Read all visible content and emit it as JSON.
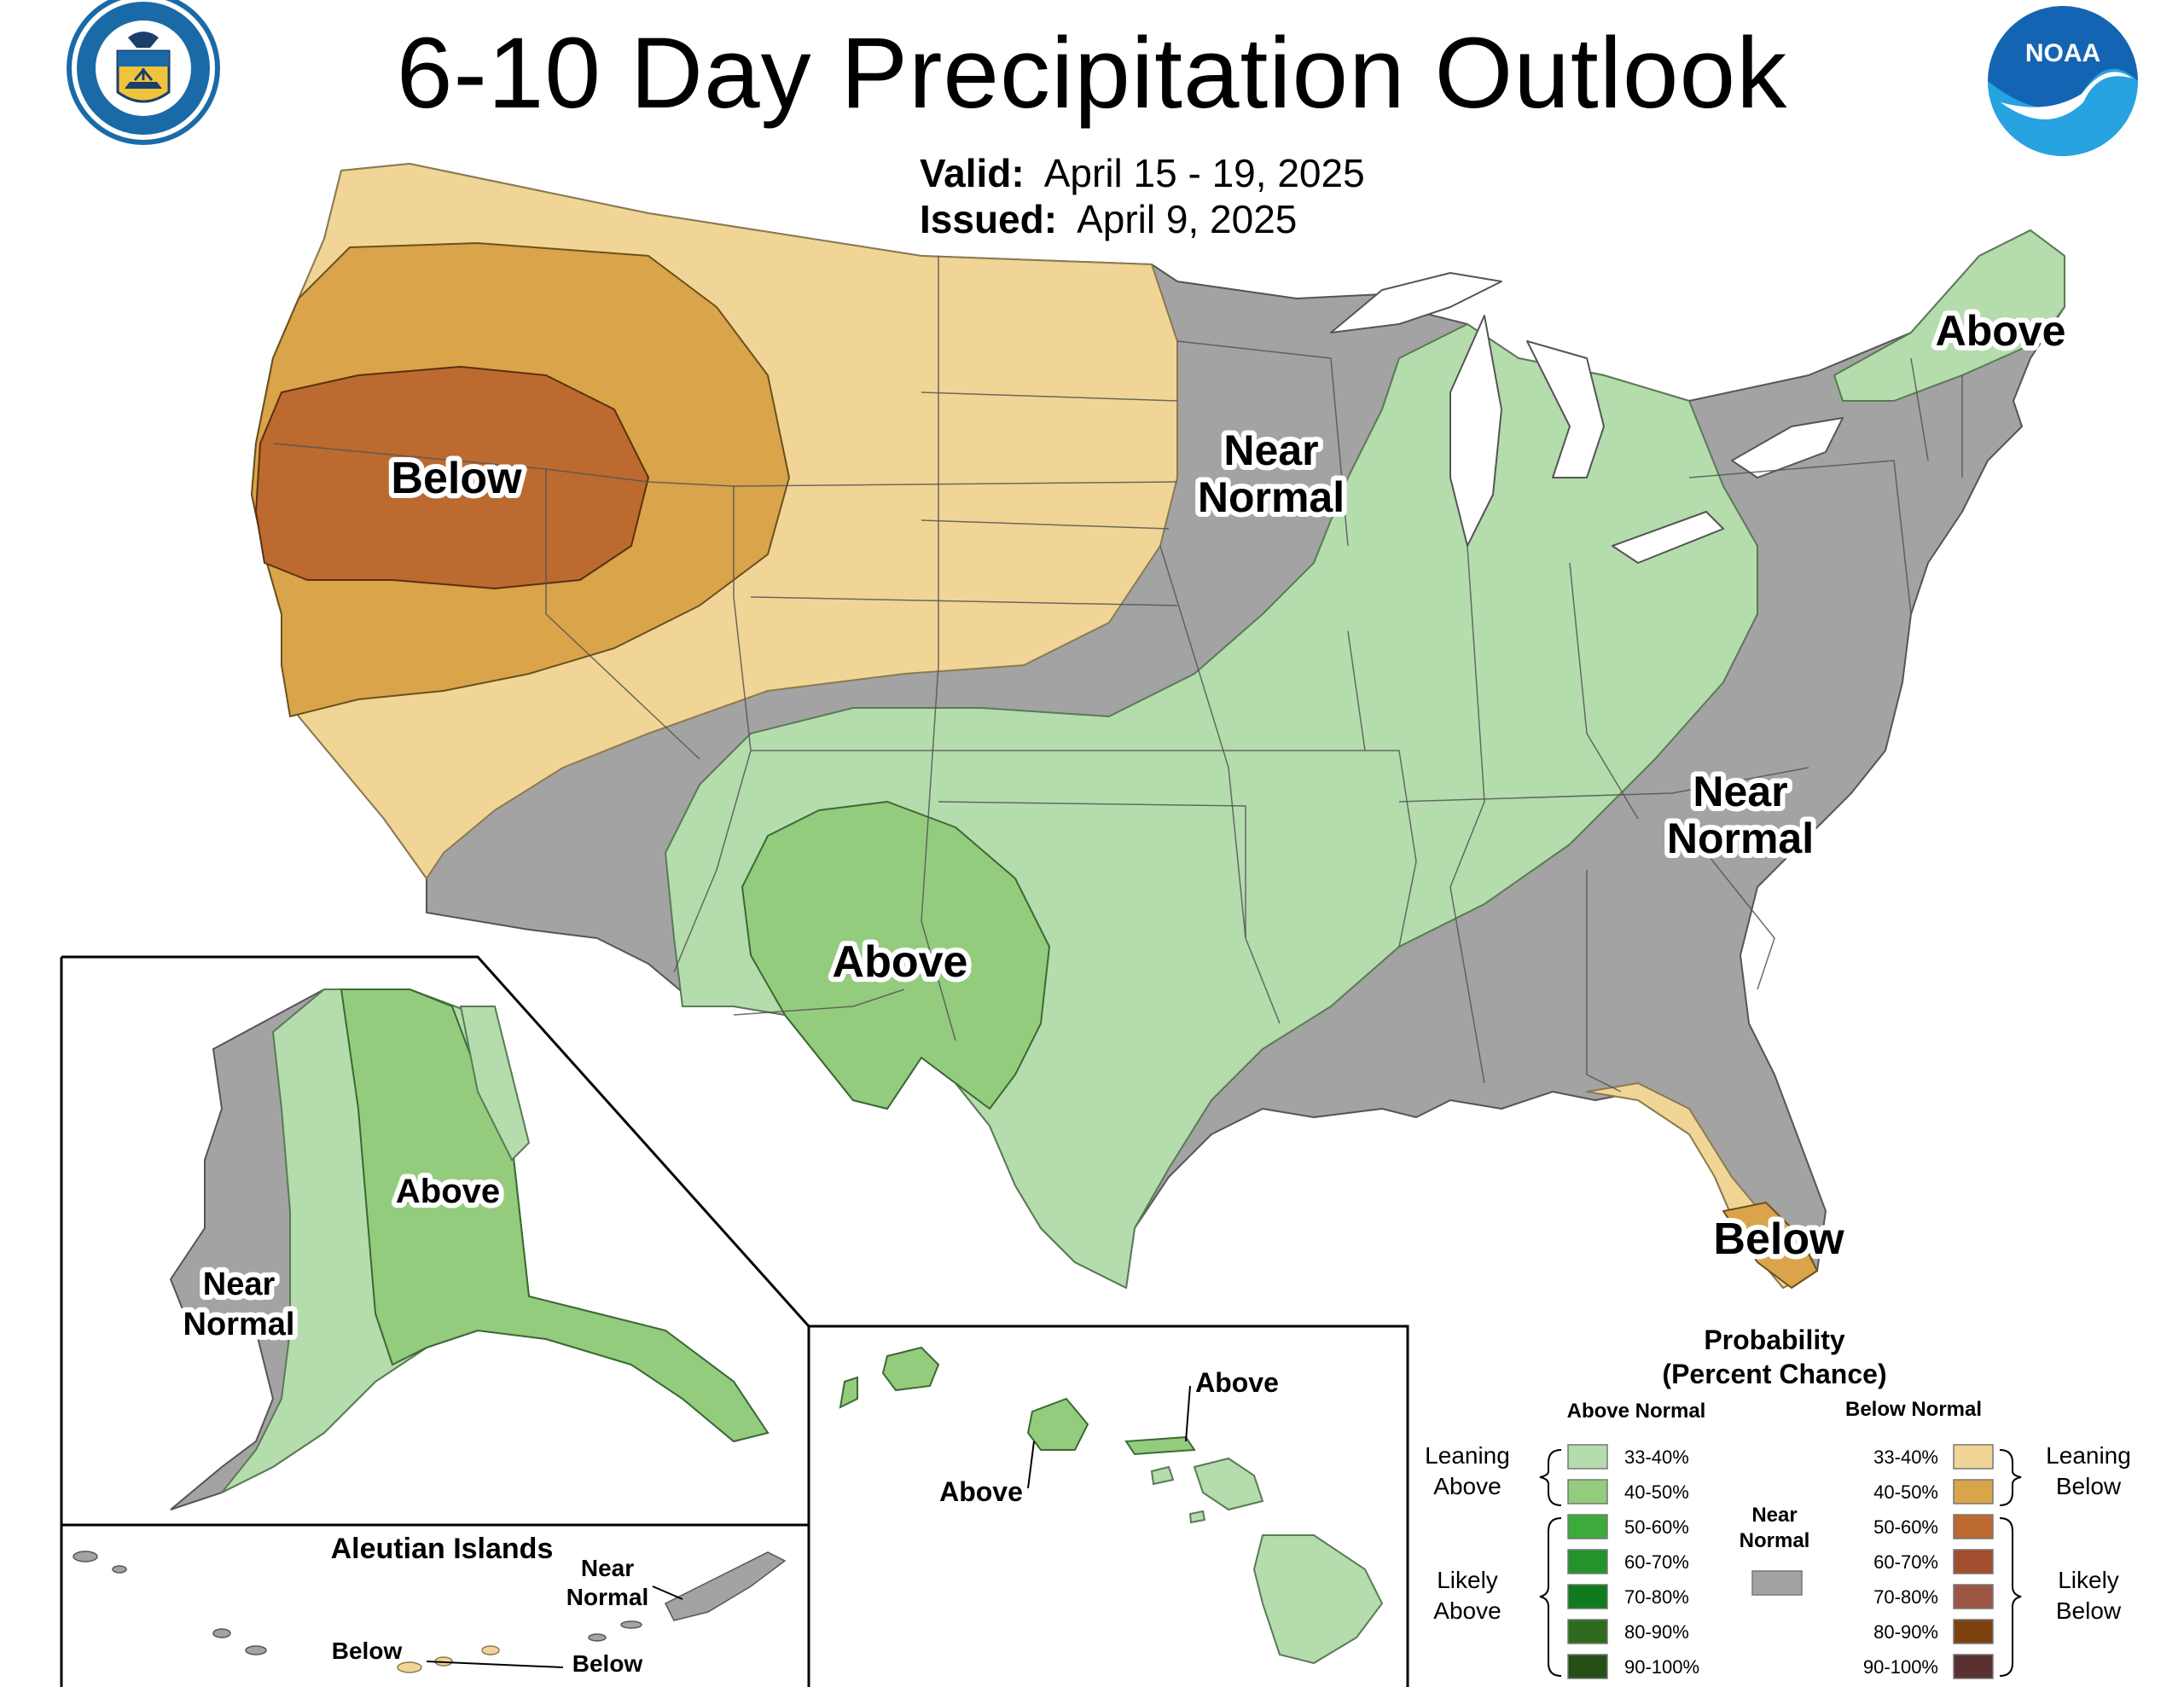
{
  "title": "6-10 Day Precipitation Outlook",
  "valid": {
    "label": "Valid:",
    "value": "April 15 - 19, 2025"
  },
  "issued": {
    "label": "Issued:",
    "value": "April 9, 2025"
  },
  "colors": {
    "above_33_40": "#b4dcad",
    "above_40_50": "#94cc7e",
    "above_50_60": "#3dab3c",
    "above_60_70": "#22942a",
    "above_70_80": "#0f7b1c",
    "above_80_90": "#2e6b1f",
    "above_90_100": "#254f15",
    "below_33_40": "#f1d596",
    "below_40_50": "#d9a44a",
    "below_50_60": "#bc6a30",
    "below_60_70": "#a24e2f",
    "below_70_80": "#9b5644",
    "below_80_90": "#7c4311",
    "below_90_100": "#5a3131",
    "near_normal": "#a3a3a3",
    "outline": "#555555"
  },
  "conus_labels": {
    "west_below": "Below",
    "north_near_1": "Near",
    "north_near_2": "Normal",
    "ne_above": "Above",
    "se_near_1": "Near",
    "se_near_2": "Normal",
    "sw_above": "Above",
    "fl_below": "Below"
  },
  "alaska": {
    "above": "Above",
    "near_1": "Near",
    "near_2": "Normal",
    "aleutian_title": "Aleutian Islands",
    "aleutian_near_1": "Near",
    "aleutian_near_2": "Normal",
    "aleutian_below_left": "Below",
    "aleutian_below_right": "Below"
  },
  "hawaii": {
    "above_top": "Above",
    "above_left": "Above"
  },
  "legend": {
    "title_1": "Probability",
    "title_2": "(Percent Chance)",
    "above_header": "Above Normal",
    "below_header": "Below Normal",
    "near_1": "Near",
    "near_2": "Normal",
    "leaning_above_1": "Leaning",
    "leaning_above_2": "Above",
    "likely_above_1": "Likely",
    "likely_above_2": "Above",
    "leaning_below_1": "Leaning",
    "leaning_below_2": "Below",
    "likely_below_1": "Likely",
    "likely_below_2": "Below",
    "ranges": [
      "33-40%",
      "40-50%",
      "50-60%",
      "60-70%",
      "70-80%",
      "80-90%",
      "90-100%"
    ]
  },
  "logos": {
    "noaa": "NOAA",
    "doc_ring": "DEPARTMENT OF COMMERCE • UNITED STATES OF AMERICA •"
  }
}
